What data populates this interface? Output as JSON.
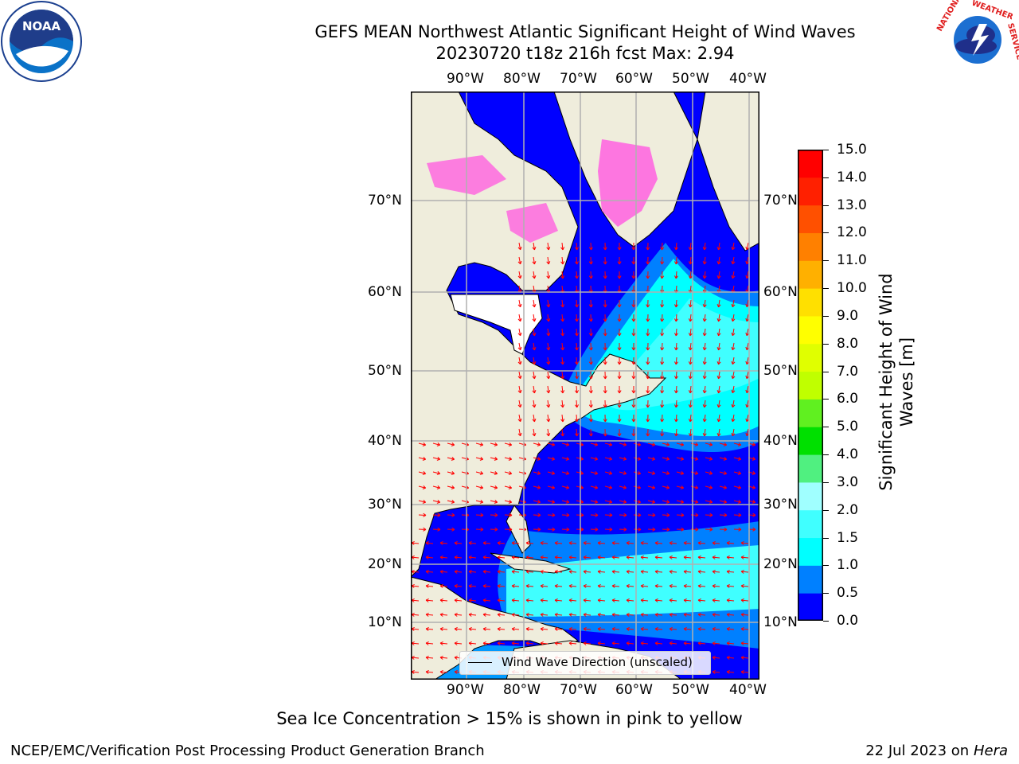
{
  "title_line1": "GEFS MEAN Northwest Atlantic Significant Height of Wind Waves",
  "title_line2": "20230720 t18z 216h fcst   Max: 2.94",
  "logos": {
    "left": "NOAA",
    "right": "NATIONAL WEATHER SERVICE"
  },
  "map": {
    "lon_labels": [
      "90°W",
      "80°W",
      "70°W",
      "60°W",
      "50°W",
      "40°W"
    ],
    "lat_labels": [
      "70°N",
      "60°N",
      "50°N",
      "40°N",
      "30°N",
      "20°N",
      "10°N"
    ],
    "legend_label": "Wind Wave Direction (unscaled)"
  },
  "colorbar": {
    "label_line1": "Significant Height of Wind",
    "label_line2": "Waves [m]",
    "ticks": [
      "0.0",
      "0.5",
      "1.0",
      "1.5",
      "2.0",
      "3.0",
      "4.0",
      "5.0",
      "6.0",
      "7.0",
      "8.0",
      "9.0",
      "10.0",
      "11.0",
      "12.0",
      "13.0",
      "14.0",
      "15.0"
    ],
    "colors": [
      "#0000ff",
      "#0080ff",
      "#00ffff",
      "#40ffff",
      "#a0ffff",
      "#50f080",
      "#00e000",
      "#60f020",
      "#c0ff00",
      "#e0ff00",
      "#ffff00",
      "#ffe000",
      "#ffb000",
      "#ff8000",
      "#ff5000",
      "#ff2000",
      "#ff0000"
    ]
  },
  "ice_note": "Sea Ice Concentration > 15% is shown in pink to yellow",
  "footer_left": "NCEP/EMC/Verification Post Processing Product Generation Branch",
  "footer_right_prefix": "22 Jul 2023 on ",
  "footer_right_machine": "Hera",
  "colors": {
    "land": "#efeddc",
    "low_wave": "#0000ff",
    "mid_wave": "#0080ff",
    "high_wave": "#40ffff",
    "arrow": "#ff0000",
    "ice": "#ff60e0"
  }
}
